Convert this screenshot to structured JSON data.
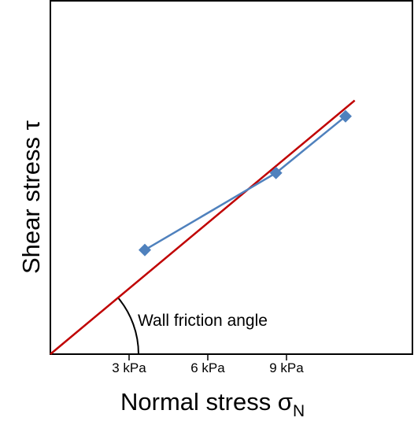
{
  "chart_data": {
    "type": "scatter",
    "title": "",
    "xlabel": "Normal stress σ",
    "xlabel_subscript": "N",
    "ylabel": "Shear stress τ",
    "xlim": [
      0,
      13.8
    ],
    "ylim": [
      0,
      15.6
    ],
    "grid": false,
    "xticks": [
      {
        "value": 3,
        "label": "3 kPa"
      },
      {
        "value": 6,
        "label": "6 kPa"
      },
      {
        "value": 9,
        "label": "9 kPa"
      }
    ],
    "series": [
      {
        "x": [
          3.6,
          8.6,
          11.25
        ],
        "y": [
          4.6,
          8.0,
          10.5
        ],
        "color": "#4f81bd",
        "marker": "diamond"
      }
    ],
    "fit_line": {
      "x": [
        0,
        11.6
      ],
      "y": [
        0,
        11.2
      ],
      "color": "#c00000"
    },
    "annotations": [
      {
        "text": "Wall friction angle"
      }
    ]
  }
}
